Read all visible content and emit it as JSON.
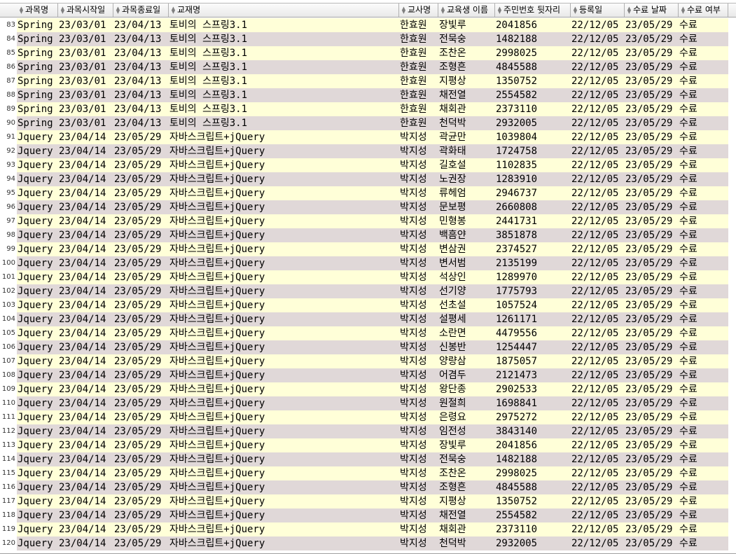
{
  "headers": [
    "과목명",
    "과목시작일",
    "과목종료일",
    "교재명",
    "교사명",
    "교육생 이름",
    "주민번호 뒷자리",
    "등록일",
    "수료 날짜",
    "수료 여부"
  ],
  "rows": [
    [
      "83",
      "Spring",
      "23/03/01",
      "23/04/13",
      "토비의 스프링3.1",
      "한효원",
      "장빛루",
      "2041856",
      "22/12/05",
      "23/05/29",
      "수료"
    ],
    [
      "84",
      "Spring",
      "23/03/01",
      "23/04/13",
      "토비의 스프링3.1",
      "한효원",
      "전묵숭",
      "1482188",
      "22/12/05",
      "23/05/29",
      "수료"
    ],
    [
      "85",
      "Spring",
      "23/03/01",
      "23/04/13",
      "토비의 스프링3.1",
      "한효원",
      "조찬온",
      "2998025",
      "22/12/05",
      "23/05/29",
      "수료"
    ],
    [
      "86",
      "Spring",
      "23/03/01",
      "23/04/13",
      "토비의 스프링3.1",
      "한효원",
      "조형흔",
      "4845588",
      "22/12/05",
      "23/05/29",
      "수료"
    ],
    [
      "87",
      "Spring",
      "23/03/01",
      "23/04/13",
      "토비의 스프링3.1",
      "한효원",
      "지평상",
      "1350752",
      "22/12/05",
      "23/05/29",
      "수료"
    ],
    [
      "88",
      "Spring",
      "23/03/01",
      "23/04/13",
      "토비의 스프링3.1",
      "한효원",
      "채전열",
      "2554582",
      "22/12/05",
      "23/05/29",
      "수료"
    ],
    [
      "89",
      "Spring",
      "23/03/01",
      "23/04/13",
      "토비의 스프링3.1",
      "한효원",
      "채회관",
      "2373110",
      "22/12/05",
      "23/05/29",
      "수료"
    ],
    [
      "90",
      "Spring",
      "23/03/01",
      "23/04/13",
      "토비의 스프링3.1",
      "한효원",
      "천덕박",
      "2932005",
      "22/12/05",
      "23/05/29",
      "수료"
    ],
    [
      "91",
      "Jquery",
      "23/04/14",
      "23/05/29",
      "자바스크립트+jQuery",
      "박지성",
      "곽균만",
      "1039804",
      "22/12/05",
      "23/05/29",
      "수료"
    ],
    [
      "92",
      "Jquery",
      "23/04/14",
      "23/05/29",
      "자바스크립트+jQuery",
      "박지성",
      "곽화태",
      "1724758",
      "22/12/05",
      "23/05/29",
      "수료"
    ],
    [
      "93",
      "Jquery",
      "23/04/14",
      "23/05/29",
      "자바스크립트+jQuery",
      "박지성",
      "길호설",
      "1102835",
      "22/12/05",
      "23/05/29",
      "수료"
    ],
    [
      "94",
      "Jquery",
      "23/04/14",
      "23/05/29",
      "자바스크립트+jQuery",
      "박지성",
      "노권장",
      "1283910",
      "22/12/05",
      "23/05/29",
      "수료"
    ],
    [
      "95",
      "Jquery",
      "23/04/14",
      "23/05/29",
      "자바스크립트+jQuery",
      "박지성",
      "류헤엄",
      "2946737",
      "22/12/05",
      "23/05/29",
      "수료"
    ],
    [
      "96",
      "Jquery",
      "23/04/14",
      "23/05/29",
      "자바스크립트+jQuery",
      "박지성",
      "문보평",
      "2660808",
      "22/12/05",
      "23/05/29",
      "수료"
    ],
    [
      "97",
      "Jquery",
      "23/04/14",
      "23/05/29",
      "자바스크립트+jQuery",
      "박지성",
      "민형봉",
      "2441731",
      "22/12/05",
      "23/05/29",
      "수료"
    ],
    [
      "98",
      "Jquery",
      "23/04/14",
      "23/05/29",
      "자바스크립트+jQuery",
      "박지성",
      "백흠얀",
      "3851878",
      "22/12/05",
      "23/05/29",
      "수료"
    ],
    [
      "99",
      "Jquery",
      "23/04/14",
      "23/05/29",
      "자바스크립트+jQuery",
      "박지성",
      "변삼권",
      "2374527",
      "22/12/05",
      "23/05/29",
      "수료"
    ],
    [
      "100",
      "Jquery",
      "23/04/14",
      "23/05/29",
      "자바스크립트+jQuery",
      "박지성",
      "변서범",
      "2135199",
      "22/12/05",
      "23/05/29",
      "수료"
    ],
    [
      "101",
      "Jquery",
      "23/04/14",
      "23/05/29",
      "자바스크립트+jQuery",
      "박지성",
      "석상인",
      "1289970",
      "22/12/05",
      "23/05/29",
      "수료"
    ],
    [
      "102",
      "Jquery",
      "23/04/14",
      "23/05/29",
      "자바스크립트+jQuery",
      "박지성",
      "선기양",
      "1775793",
      "22/12/05",
      "23/05/29",
      "수료"
    ],
    [
      "103",
      "Jquery",
      "23/04/14",
      "23/05/29",
      "자바스크립트+jQuery",
      "박지성",
      "선초설",
      "1057524",
      "22/12/05",
      "23/05/29",
      "수료"
    ],
    [
      "104",
      "Jquery",
      "23/04/14",
      "23/05/29",
      "자바스크립트+jQuery",
      "박지성",
      "설평세",
      "1261171",
      "22/12/05",
      "23/05/29",
      "수료"
    ],
    [
      "105",
      "Jquery",
      "23/04/14",
      "23/05/29",
      "자바스크립트+jQuery",
      "박지성",
      "소란면",
      "4479556",
      "22/12/05",
      "23/05/29",
      "수료"
    ],
    [
      "106",
      "Jquery",
      "23/04/14",
      "23/05/29",
      "자바스크립트+jQuery",
      "박지성",
      "신봉반",
      "1254447",
      "22/12/05",
      "23/05/29",
      "수료"
    ],
    [
      "107",
      "Jquery",
      "23/04/14",
      "23/05/29",
      "자바스크립트+jQuery",
      "박지성",
      "양량삼",
      "1875057",
      "22/12/05",
      "23/05/29",
      "수료"
    ],
    [
      "108",
      "Jquery",
      "23/04/14",
      "23/05/29",
      "자바스크립트+jQuery",
      "박지성",
      "어겸두",
      "2121473",
      "22/12/05",
      "23/05/29",
      "수료"
    ],
    [
      "109",
      "Jquery",
      "23/04/14",
      "23/05/29",
      "자바스크립트+jQuery",
      "박지성",
      "왕단종",
      "2902533",
      "22/12/05",
      "23/05/29",
      "수료"
    ],
    [
      "110",
      "Jquery",
      "23/04/14",
      "23/05/29",
      "자바스크립트+jQuery",
      "박지성",
      "원절희",
      "1698841",
      "22/12/05",
      "23/05/29",
      "수료"
    ],
    [
      "111",
      "Jquery",
      "23/04/14",
      "23/05/29",
      "자바스크립트+jQuery",
      "박지성",
      "은령요",
      "2975272",
      "22/12/05",
      "23/05/29",
      "수료"
    ],
    [
      "112",
      "Jquery",
      "23/04/14",
      "23/05/29",
      "자바스크립트+jQuery",
      "박지성",
      "임전성",
      "3843140",
      "22/12/05",
      "23/05/29",
      "수료"
    ],
    [
      "113",
      "Jquery",
      "23/04/14",
      "23/05/29",
      "자바스크립트+jQuery",
      "박지성",
      "장빛루",
      "2041856",
      "22/12/05",
      "23/05/29",
      "수료"
    ],
    [
      "114",
      "Jquery",
      "23/04/14",
      "23/05/29",
      "자바스크립트+jQuery",
      "박지성",
      "전묵숭",
      "1482188",
      "22/12/05",
      "23/05/29",
      "수료"
    ],
    [
      "115",
      "Jquery",
      "23/04/14",
      "23/05/29",
      "자바스크립트+jQuery",
      "박지성",
      "조찬온",
      "2998025",
      "22/12/05",
      "23/05/29",
      "수료"
    ],
    [
      "116",
      "Jquery",
      "23/04/14",
      "23/05/29",
      "자바스크립트+jQuery",
      "박지성",
      "조형흔",
      "4845588",
      "22/12/05",
      "23/05/29",
      "수료"
    ],
    [
      "117",
      "Jquery",
      "23/04/14",
      "23/05/29",
      "자바스크립트+jQuery",
      "박지성",
      "지평상",
      "1350752",
      "22/12/05",
      "23/05/29",
      "수료"
    ],
    [
      "118",
      "Jquery",
      "23/04/14",
      "23/05/29",
      "자바스크립트+jQuery",
      "박지성",
      "채전열",
      "2554582",
      "22/12/05",
      "23/05/29",
      "수료"
    ],
    [
      "119",
      "Jquery",
      "23/04/14",
      "23/05/29",
      "자바스크립트+jQuery",
      "박지성",
      "채회관",
      "2373110",
      "22/12/05",
      "23/05/29",
      "수료"
    ],
    [
      "120",
      "Jquery",
      "23/04/14",
      "23/05/29",
      "자바스크립트+jQuery",
      "박지성",
      "천덕박",
      "2932005",
      "22/12/05",
      "23/05/29",
      "수료"
    ]
  ],
  "colors": {
    "row_odd": "#ffffd8",
    "row_even": "#e0d8d8",
    "header_bg": "#efefef"
  },
  "icons": {
    "sort": "sort-icon"
  }
}
